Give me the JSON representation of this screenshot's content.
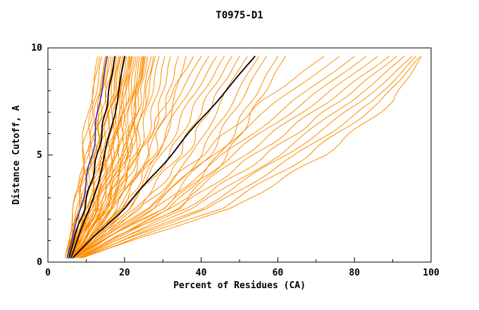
{
  "chart_data": {
    "type": "line",
    "title": "T0975-D1",
    "xlabel": "Percent of Residues (CA)",
    "ylabel": "Distance Cutoff, A",
    "xlim": [
      0,
      100
    ],
    "ylim": [
      0,
      10
    ],
    "x_ticks": [
      0,
      20,
      40,
      60,
      80,
      100
    ],
    "y_ticks": [
      0,
      5,
      10
    ],
    "x_minor_step": 10,
    "y_minor_step": 1,
    "grid": false,
    "legend": "none",
    "colors": {
      "prediction": "#ff8c00",
      "selected": "#000000",
      "baseline": "#2929b8"
    },
    "cutoff_levels": [
      0.2,
      1.2,
      2.5,
      5,
      7.5,
      9.6
    ],
    "series": [
      {
        "color": "prediction",
        "percents": [
          5,
          6,
          7,
          9,
          11,
          13
        ]
      },
      {
        "color": "prediction",
        "percents": [
          5,
          6,
          7.5,
          10,
          12,
          14
        ]
      },
      {
        "color": "prediction",
        "percents": [
          4.5,
          6,
          8,
          10.5,
          13,
          15
        ]
      },
      {
        "color": "prediction",
        "percents": [
          5,
          6.5,
          8,
          11,
          13.5,
          15.5
        ]
      },
      {
        "color": "prediction",
        "percents": [
          5,
          7,
          9,
          12,
          14,
          16
        ]
      },
      {
        "color": "prediction",
        "percents": [
          5.5,
          7,
          9.5,
          12.5,
          15,
          17
        ]
      },
      {
        "color": "prediction",
        "percents": [
          5,
          7,
          10,
          13,
          15.5,
          17.5
        ]
      },
      {
        "color": "prediction",
        "percents": [
          5.5,
          7.5,
          10,
          13.5,
          16,
          18
        ]
      },
      {
        "color": "prediction",
        "percents": [
          6,
          8,
          10.5,
          14,
          16.5,
          18.5
        ]
      },
      {
        "color": "prediction",
        "percents": [
          5,
          7.5,
          11,
          14.5,
          17,
          19
        ]
      },
      {
        "color": "prediction",
        "percents": [
          6,
          8,
          11,
          15,
          17.5,
          19.5
        ]
      },
      {
        "color": "prediction",
        "percents": [
          5.5,
          8,
          11.5,
          15.5,
          18,
          20
        ]
      },
      {
        "color": "prediction",
        "percents": [
          6,
          8.5,
          12,
          16,
          18.5,
          20.5
        ]
      },
      {
        "color": "prediction",
        "percents": [
          5,
          8,
          12,
          16.5,
          19,
          21
        ]
      },
      {
        "color": "prediction",
        "percents": [
          6,
          9,
          12.5,
          17,
          19.5,
          21.5
        ]
      },
      {
        "color": "prediction",
        "percents": [
          6,
          9,
          13,
          17.5,
          20,
          22
        ]
      },
      {
        "color": "prediction",
        "percents": [
          5.5,
          8.5,
          13,
          18,
          20.5,
          22.5
        ]
      },
      {
        "color": "prediction",
        "percents": [
          6,
          9.5,
          13.5,
          18.5,
          21,
          23
        ]
      },
      {
        "color": "prediction",
        "percents": [
          6.5,
          10,
          14,
          19,
          21.5,
          23.5
        ]
      },
      {
        "color": "prediction",
        "percents": [
          6,
          9,
          14,
          19.5,
          22,
          24
        ]
      },
      {
        "color": "prediction",
        "percents": [
          6.5,
          10,
          14.5,
          20,
          22.5,
          24.5
        ]
      },
      {
        "color": "prediction",
        "percents": [
          6,
          10.5,
          15,
          20.5,
          23,
          25
        ]
      },
      {
        "color": "prediction",
        "percents": [
          7,
          11,
          15.5,
          21,
          23.5,
          25.5
        ]
      },
      {
        "color": "prediction",
        "percents": [
          6.5,
          10,
          15,
          21.5,
          24,
          26
        ]
      },
      {
        "color": "prediction",
        "percents": [
          7,
          11,
          16,
          22,
          24.5,
          27
        ]
      },
      {
        "color": "prediction",
        "percents": [
          6.5,
          11.5,
          16.5,
          22.5,
          25.5,
          28
        ]
      },
      {
        "color": "prediction",
        "percents": [
          7,
          12,
          17,
          23.5,
          26.5,
          29
        ]
      },
      {
        "color": "prediction",
        "percents": [
          7,
          12,
          18,
          24.5,
          28,
          30.5
        ]
      },
      {
        "color": "prediction",
        "percents": [
          7.5,
          13,
          19,
          26,
          29.5,
          32
        ]
      },
      {
        "color": "prediction",
        "percents": [
          7,
          13,
          20,
          27.5,
          31,
          34
        ]
      },
      {
        "color": "prediction",
        "percents": [
          7.5,
          14,
          21,
          29,
          33,
          36
        ]
      },
      {
        "color": "prediction",
        "percents": [
          4.5,
          5.5,
          7,
          9.5,
          11.5,
          13.5
        ]
      },
      {
        "color": "prediction",
        "percents": [
          5,
          6,
          8,
          10.8,
          13.2,
          15.2
        ]
      },
      {
        "color": "prediction",
        "percents": [
          5.5,
          7,
          9,
          12,
          14.5,
          16.5
        ]
      },
      {
        "color": "prediction",
        "percents": [
          6,
          8.5,
          11.5,
          15.5,
          18,
          20.2
        ]
      },
      {
        "color": "prediction",
        "percents": [
          5,
          7,
          10.5,
          14,
          16.5,
          18.8
        ]
      },
      {
        "color": "prediction",
        "percents": [
          6,
          9,
          12.8,
          17.2,
          19.8,
          21.8
        ]
      },
      {
        "color": "prediction",
        "percents": [
          6.5,
          10.5,
          15,
          20.8,
          23.2,
          25.2
        ]
      },
      {
        "color": "prediction",
        "percents": [
          5.5,
          8,
          12.5,
          17,
          19.5,
          21.3
        ]
      },
      {
        "color": "prediction",
        "percents": [
          6,
          10,
          14.8,
          20.2,
          22.8,
          24.8
        ]
      },
      {
        "color": "prediction",
        "percents": [
          7,
          11.5,
          16.8,
          22.8,
          25.2,
          27.5
        ]
      },
      {
        "color": "prediction",
        "percents": [
          6,
          10,
          16,
          24,
          31,
          38
        ]
      },
      {
        "color": "prediction",
        "percents": [
          6.5,
          11,
          17,
          26,
          33,
          40
        ]
      },
      {
        "color": "prediction",
        "percents": [
          7,
          12,
          18,
          28,
          35,
          42
        ]
      },
      {
        "color": "prediction",
        "percents": [
          6,
          12,
          20,
          30,
          37,
          44
        ]
      },
      {
        "color": "prediction",
        "percents": [
          7,
          13,
          21,
          32,
          39,
          46
        ]
      },
      {
        "color": "prediction",
        "percents": [
          7,
          14,
          23,
          34,
          41,
          48
        ]
      },
      {
        "color": "prediction",
        "percents": [
          6.5,
          13,
          24,
          36,
          43,
          50
        ]
      },
      {
        "color": "prediction",
        "percents": [
          7,
          15,
          26,
          38,
          45,
          52
        ]
      },
      {
        "color": "prediction",
        "percents": [
          7.5,
          16,
          28,
          40,
          48,
          55
        ]
      },
      {
        "color": "prediction",
        "percents": [
          7,
          16,
          30,
          42,
          50,
          57
        ]
      },
      {
        "color": "prediction",
        "percents": [
          8,
          18,
          32,
          45,
          53,
          60
        ]
      },
      {
        "color": "prediction",
        "percents": [
          8,
          19,
          34,
          47,
          55,
          62
        ]
      },
      {
        "color": "prediction",
        "percents": [
          7,
          14,
          24,
          40,
          56,
          72
        ]
      },
      {
        "color": "prediction",
        "percents": [
          7.5,
          15,
          26,
          43,
          60,
          76
        ]
      },
      {
        "color": "prediction",
        "percents": [
          8,
          16,
          28,
          46,
          64,
          80
        ]
      },
      {
        "color": "prediction",
        "percents": [
          7,
          16,
          30,
          48,
          67,
          83
        ]
      },
      {
        "color": "prediction",
        "percents": [
          8,
          18,
          32,
          51,
          70,
          86
        ]
      },
      {
        "color": "prediction",
        "percents": [
          8,
          18,
          34,
          54,
          73,
          89
        ]
      },
      {
        "color": "prediction",
        "percents": [
          8.5,
          20,
          36,
          57,
          76,
          91
        ]
      },
      {
        "color": "prediction",
        "percents": [
          8,
          20,
          38,
          60,
          79,
          93
        ]
      },
      {
        "color": "prediction",
        "percents": [
          9,
          22,
          40,
          62,
          82,
          95
        ]
      },
      {
        "color": "prediction",
        "percents": [
          8.5,
          22,
          42,
          65,
          85,
          96
        ]
      },
      {
        "color": "prediction",
        "percents": [
          9,
          24,
          45,
          68,
          87,
          97
        ]
      },
      {
        "color": "prediction",
        "percents": [
          9,
          25,
          48,
          72,
          90,
          97.5
        ]
      },
      {
        "color": "selected",
        "percents": [
          5.5,
          7,
          9.5,
          13,
          15.5,
          17.5
        ]
      },
      {
        "color": "selected",
        "percents": [
          6,
          8,
          11,
          15,
          18,
          20
        ]
      },
      {
        "color": "selected",
        "percents": [
          6.5,
          12,
          20,
          32,
          44,
          54
        ]
      },
      {
        "color": "baseline",
        "percents": [
          5,
          6.5,
          8.5,
          11.5,
          13.5,
          15.5
        ]
      }
    ]
  }
}
